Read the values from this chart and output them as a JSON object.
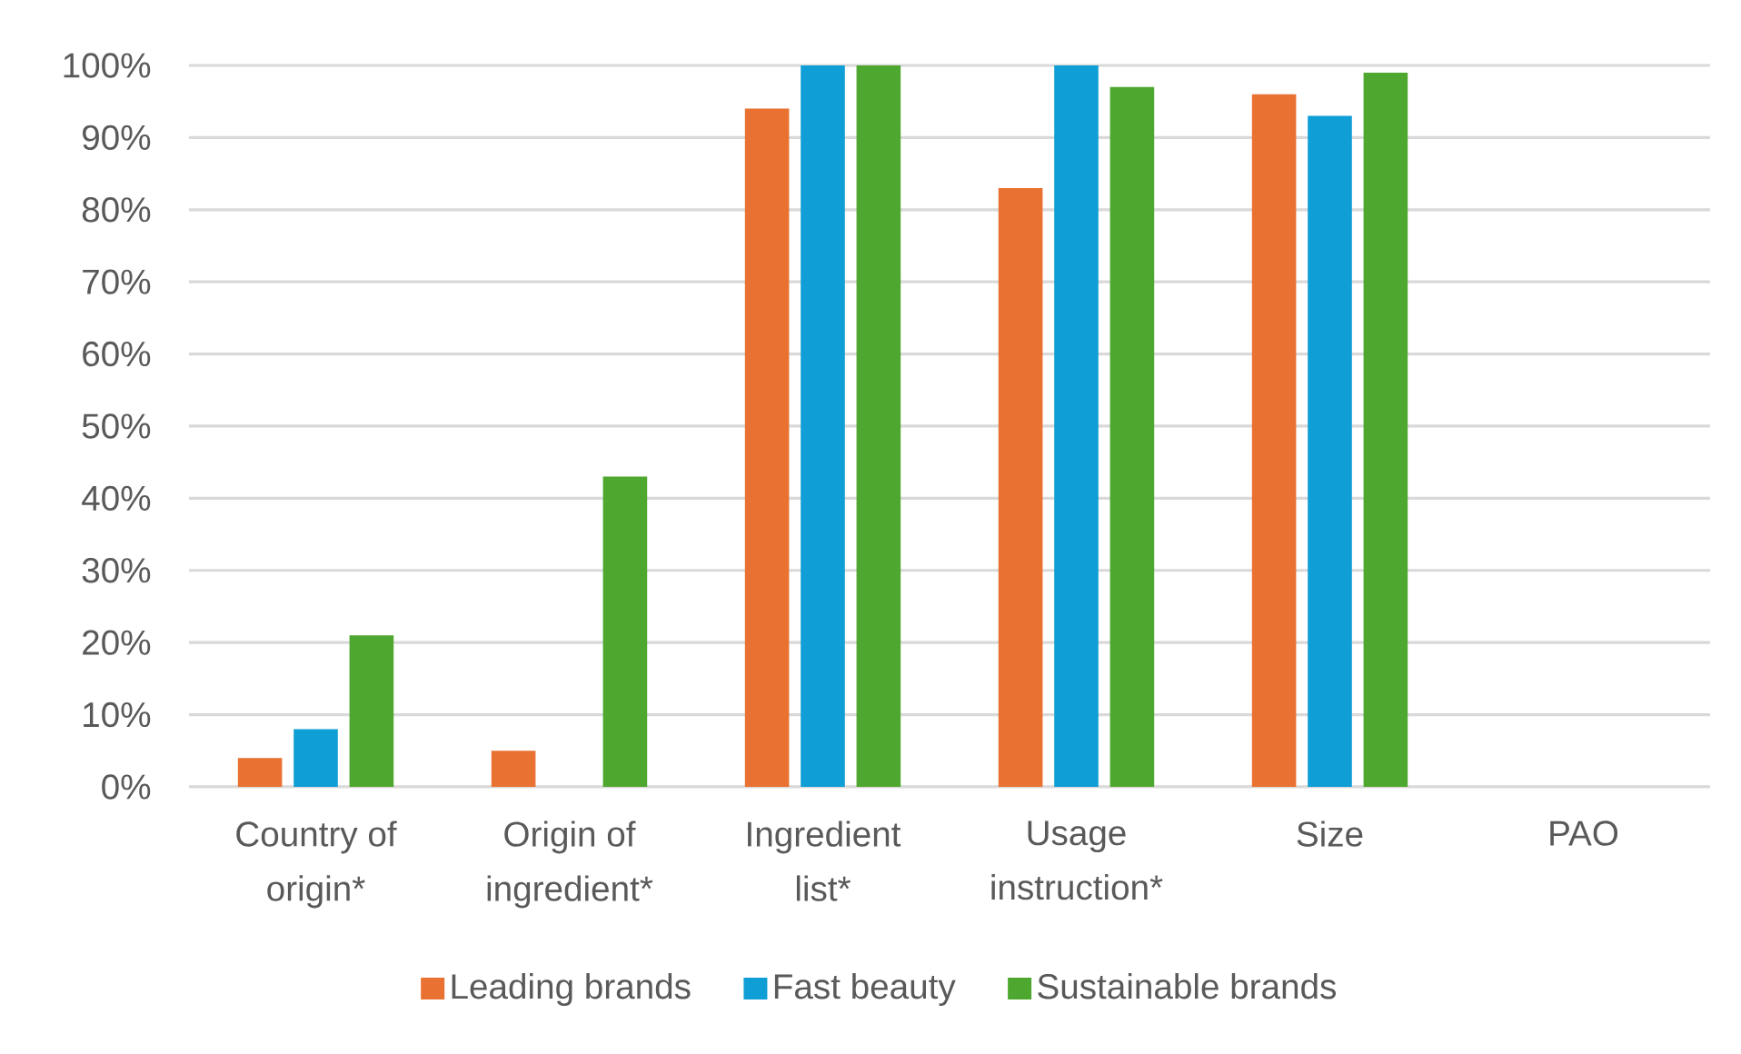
{
  "chart_data": {
    "type": "bar",
    "categories": [
      "Country of origin*",
      "Origin of ingredient*",
      "Ingredient list*",
      "Usage instruction*",
      "Size",
      "PAO"
    ],
    "series": [
      {
        "name": "Leading brands",
        "color": "#e97132",
        "values": [
          4,
          5,
          94,
          83,
          96,
          0
        ]
      },
      {
        "name": "Fast beauty",
        "color": "#0f9ed5",
        "values": [
          8,
          0,
          100,
          100,
          93,
          0
        ]
      },
      {
        "name": "Sustainable brands",
        "color": "#4ea72e",
        "values": [
          21,
          43,
          100,
          97,
          99,
          0
        ]
      }
    ],
    "ylim": [
      0,
      100
    ],
    "yticks": [
      {
        "value": 0,
        "label": "0%"
      },
      {
        "value": 10,
        "label": "10%"
      },
      {
        "value": 20,
        "label": "20%"
      },
      {
        "value": 30,
        "label": "30%"
      },
      {
        "value": 40,
        "label": "40%"
      },
      {
        "value": 50,
        "label": "50%"
      },
      {
        "value": 60,
        "label": "60%"
      },
      {
        "value": 70,
        "label": "70%"
      },
      {
        "value": 80,
        "label": "80%"
      },
      {
        "value": 90,
        "label": "90%"
      },
      {
        "value": 100,
        "label": "100%"
      }
    ],
    "grid": "y",
    "legend": "bottom"
  }
}
